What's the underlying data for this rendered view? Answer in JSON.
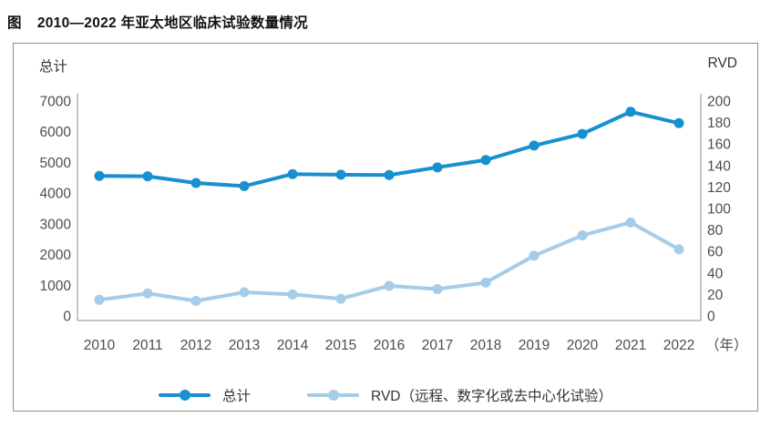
{
  "figure": {
    "tag": "图",
    "title": "2010—2022 年亚太地区临床试验数量情况"
  },
  "chart": {
    "left_axis_title": "总计",
    "right_axis_title": "RVD",
    "x_unit": "（年）",
    "colors": {
      "total_series": "#1790D0",
      "rvd_series": "#A5CCE9",
      "axis_line": "#8c8c8c",
      "tick_text": "#4d4d4d",
      "panel_border": "#8e8e8e"
    }
  },
  "chart_data": {
    "type": "line",
    "title": "2010—2022 年亚太地区临床试验数量情况",
    "categories": [
      "2010",
      "2011",
      "2012",
      "2013",
      "2014",
      "2015",
      "2016",
      "2017",
      "2018",
      "2019",
      "2020",
      "2021",
      "2022"
    ],
    "series": [
      {
        "name": "总计",
        "axis": "left",
        "color": "#1790D0",
        "values": [
          4560,
          4550,
          4330,
          4230,
          4620,
          4600,
          4590,
          4840,
          5080,
          5550,
          5930,
          6650,
          6280
        ]
      },
      {
        "name": "RVD（远程、数字化或去中心化试验）",
        "axis": "right",
        "color": "#A5CCE9",
        "values": [
          15,
          21,
          14,
          22,
          20,
          16,
          28,
          25,
          31,
          56,
          75,
          87,
          62
        ]
      }
    ],
    "left_axis": {
      "label": "总计",
      "min": 0,
      "max": 7000,
      "step": 1000
    },
    "right_axis": {
      "label": "RVD",
      "min": 0,
      "max": 200,
      "step": 20
    },
    "x_unit": "（年）",
    "grid": false,
    "legend_position": "bottom"
  }
}
